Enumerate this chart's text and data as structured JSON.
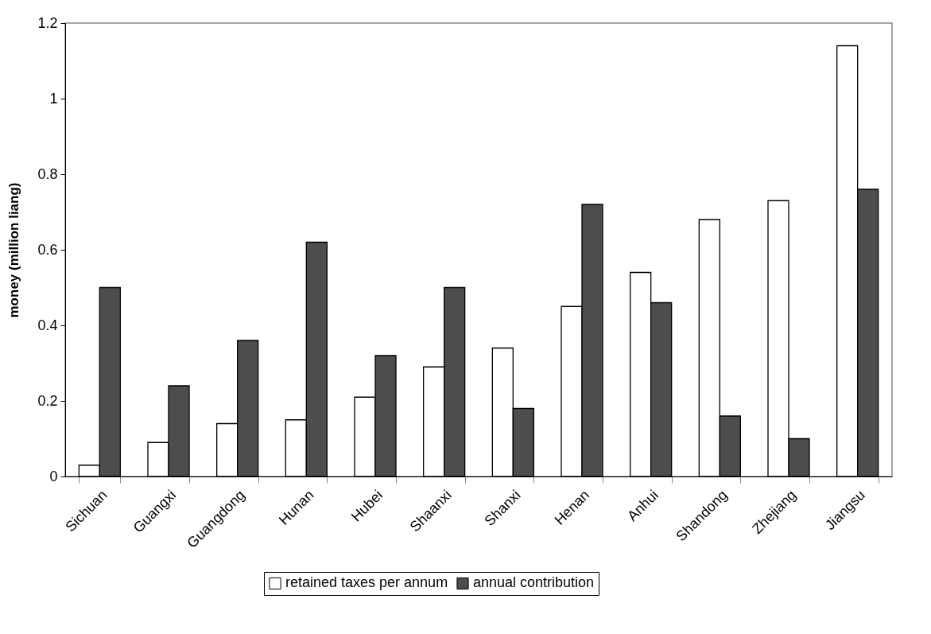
{
  "chart_data": {
    "type": "bar",
    "ylabel": "money (million liang)",
    "categories": [
      "Sichuan",
      "Guangxi",
      "Guangdong",
      "Hunan",
      "Hubei",
      "Shaanxi",
      "Shanxi",
      "Henan",
      "Anhui",
      "Shandong",
      "Zhejiang",
      "Jiangsu"
    ],
    "series": [
      {
        "name": "retained taxes per annum",
        "color": "#ffffff",
        "values": [
          0.03,
          0.09,
          0.14,
          0.15,
          0.21,
          0.29,
          0.34,
          0.45,
          0.54,
          0.68,
          0.73,
          1.14
        ]
      },
      {
        "name": "annual contribution",
        "color": "#4d4d4d",
        "values": [
          0.5,
          0.24,
          0.36,
          0.62,
          0.32,
          0.5,
          0.18,
          0.72,
          0.46,
          0.16,
          0.1,
          0.76
        ]
      }
    ],
    "ylim": [
      0,
      1.2
    ],
    "yticks": [
      0,
      0.2,
      0.4,
      0.6,
      0.8,
      1,
      1.2
    ],
    "grid": false,
    "legend": "bottom"
  }
}
